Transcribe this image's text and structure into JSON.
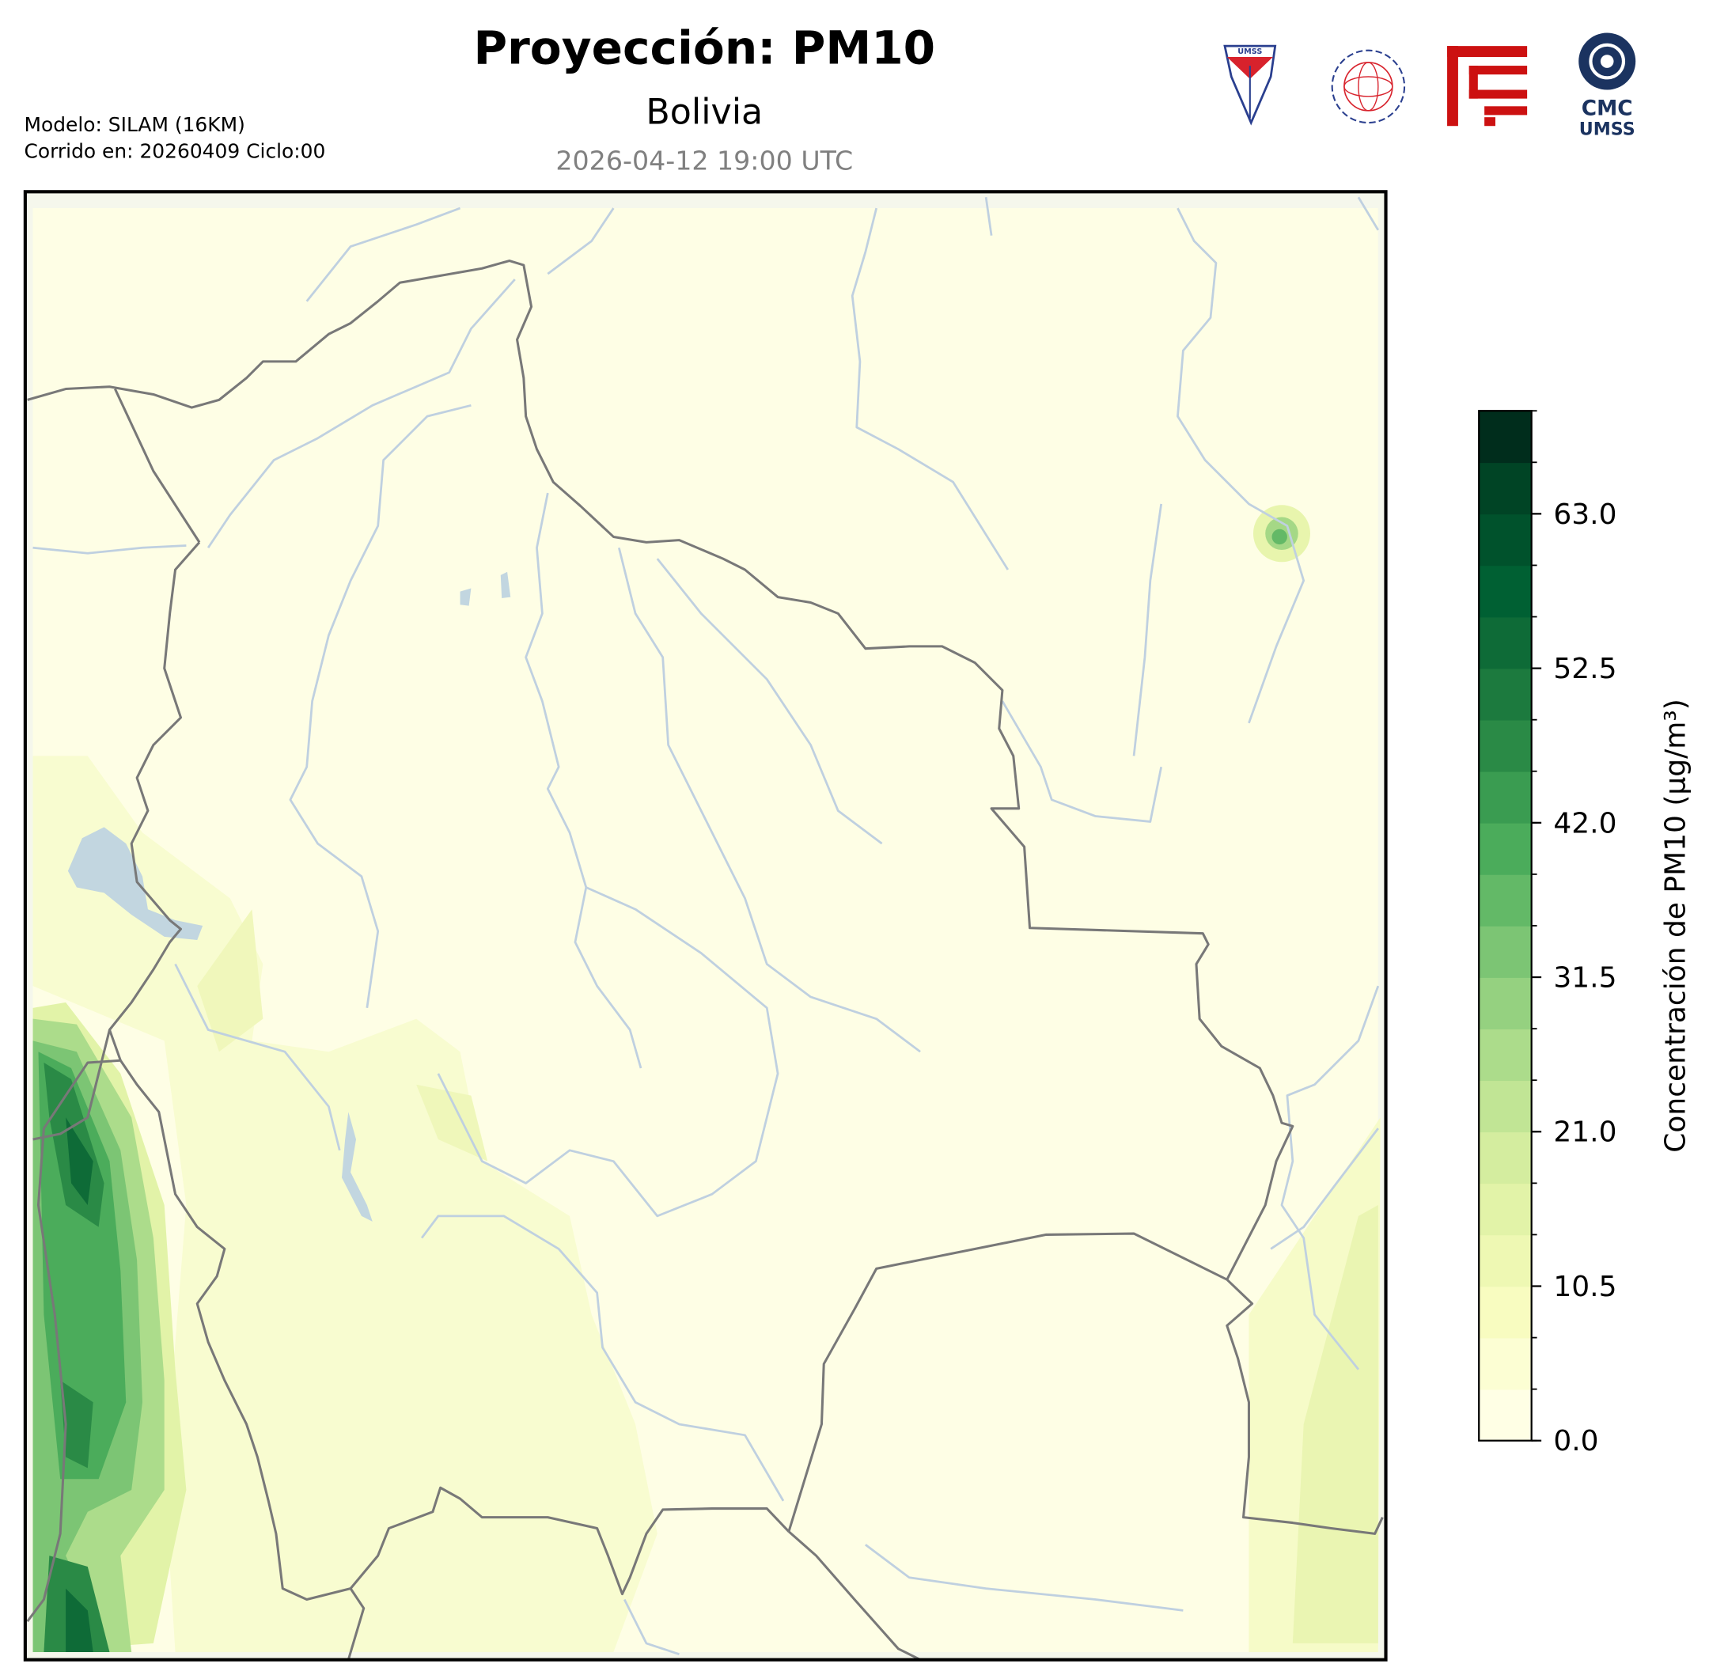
{
  "header": {
    "title": "Proyección: PM10",
    "subtitle": "Bolivia",
    "timestamp": "2026-04-12 19:00 UTC",
    "model": "Modelo: SILAM (16KM)",
    "run": "Corrido en: 20260409 Ciclo:00"
  },
  "logos": {
    "umss": "UMSS",
    "cmc": "CMC",
    "cmc_sub": "UMSS"
  },
  "colorbar": {
    "label": "Concentración de PM10 (µg/m³)",
    "levels": [
      0,
      3.5,
      7,
      10.5,
      14,
      17.5,
      21,
      24.5,
      28,
      31.5,
      35,
      38.5,
      42,
      45.5,
      49,
      52.5,
      56,
      59.5,
      63,
      66.5,
      70
    ],
    "colors": [
      "#ffffe5",
      "#fcfed3",
      "#f8fcc0",
      "#eef8b3",
      "#e2f3a8",
      "#d4ed9f",
      "#c1e595",
      "#acdc8b",
      "#95d180",
      "#7cc574",
      "#63b967",
      "#4bac5b",
      "#3a9c51",
      "#2a8a46",
      "#1c7a3e",
      "#0e6b37",
      "#006033",
      "#00522c",
      "#004425",
      "#002d1c"
    ],
    "ticks": [
      {
        "value": 0,
        "label": "0.0"
      },
      {
        "value": 10.5,
        "label": "10.5"
      },
      {
        "value": 21,
        "label": "21.0"
      },
      {
        "value": 31.5,
        "label": "31.5"
      },
      {
        "value": 42,
        "label": "42.0"
      },
      {
        "value": 52.5,
        "label": "52.5"
      },
      {
        "value": 63,
        "label": "63.0"
      }
    ]
  }
}
